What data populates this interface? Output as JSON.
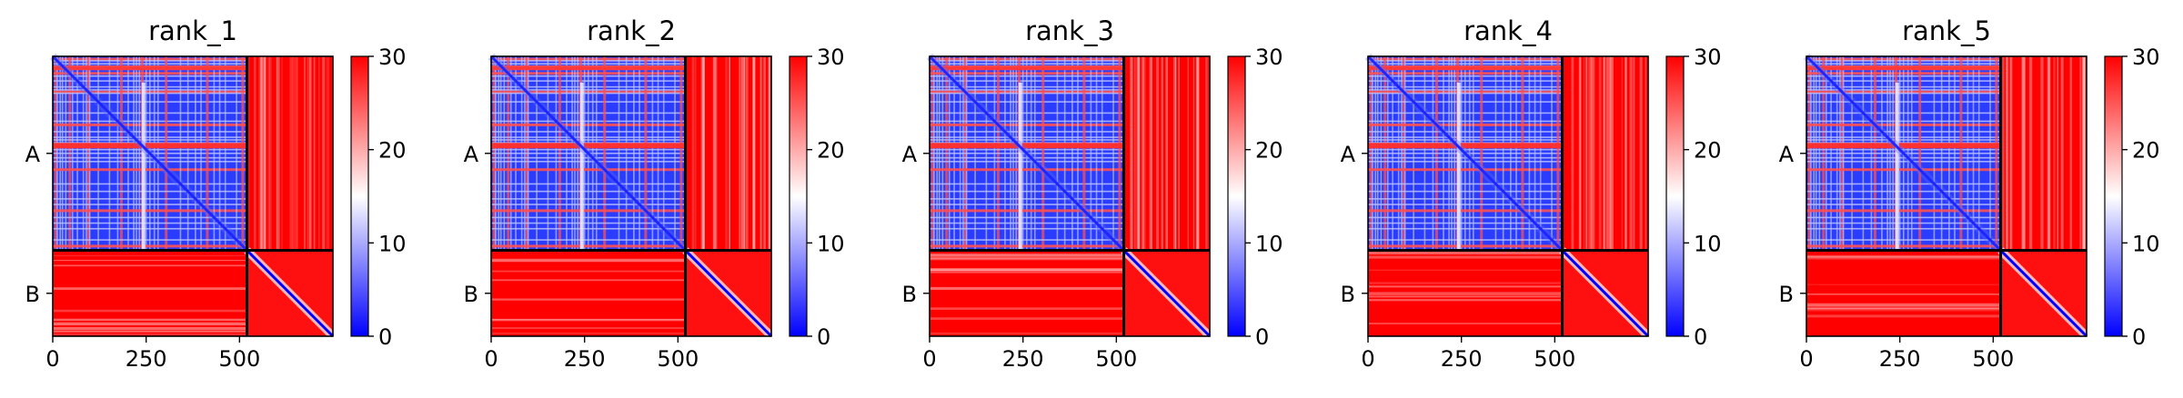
{
  "chart_data": [
    {
      "type": "heatmap",
      "title": "rank_1",
      "chain_labels": [
        "A",
        "B"
      ],
      "chain_boundary": 520,
      "n_residues": 750,
      "xticks": [
        "0",
        "250",
        "500"
      ],
      "xtick_values": [
        0,
        250,
        500
      ],
      "colorbar_ticks": [
        "0",
        "10",
        "20",
        "30"
      ],
      "colorbar_range": [
        0,
        30
      ],
      "colormap": [
        "#0000ff",
        "#ffffff",
        "#ff0000"
      ]
    },
    {
      "type": "heatmap",
      "title": "rank_2",
      "chain_labels": [
        "A",
        "B"
      ],
      "chain_boundary": 520,
      "n_residues": 750,
      "xticks": [
        "0",
        "250",
        "500"
      ],
      "xtick_values": [
        0,
        250,
        500
      ],
      "colorbar_ticks": [
        "0",
        "10",
        "20",
        "30"
      ],
      "colorbar_range": [
        0,
        30
      ],
      "colormap": [
        "#0000ff",
        "#ffffff",
        "#ff0000"
      ]
    },
    {
      "type": "heatmap",
      "title": "rank_3",
      "chain_labels": [
        "A",
        "B"
      ],
      "chain_boundary": 520,
      "n_residues": 750,
      "xticks": [
        "0",
        "250",
        "500"
      ],
      "xtick_values": [
        0,
        250,
        500
      ],
      "colorbar_ticks": [
        "0",
        "10",
        "20",
        "30"
      ],
      "colorbar_range": [
        0,
        30
      ],
      "colormap": [
        "#0000ff",
        "#ffffff",
        "#ff0000"
      ]
    },
    {
      "type": "heatmap",
      "title": "rank_4",
      "chain_labels": [
        "A",
        "B"
      ],
      "chain_boundary": 520,
      "n_residues": 750,
      "xticks": [
        "0",
        "250",
        "500"
      ],
      "xtick_values": [
        0,
        250,
        500
      ],
      "colorbar_ticks": [
        "0",
        "10",
        "20",
        "30"
      ],
      "colorbar_range": [
        0,
        30
      ],
      "colormap": [
        "#0000ff",
        "#ffffff",
        "#ff0000"
      ]
    },
    {
      "type": "heatmap",
      "title": "rank_5",
      "chain_labels": [
        "A",
        "B"
      ],
      "chain_boundary": 520,
      "n_residues": 750,
      "xticks": [
        "0",
        "250",
        "500"
      ],
      "xtick_values": [
        0,
        250,
        500
      ],
      "colorbar_ticks": [
        "0",
        "10",
        "20",
        "30"
      ],
      "colorbar_range": [
        0,
        30
      ],
      "colormap": [
        "#0000ff",
        "#ffffff",
        "#ff0000"
      ]
    }
  ]
}
